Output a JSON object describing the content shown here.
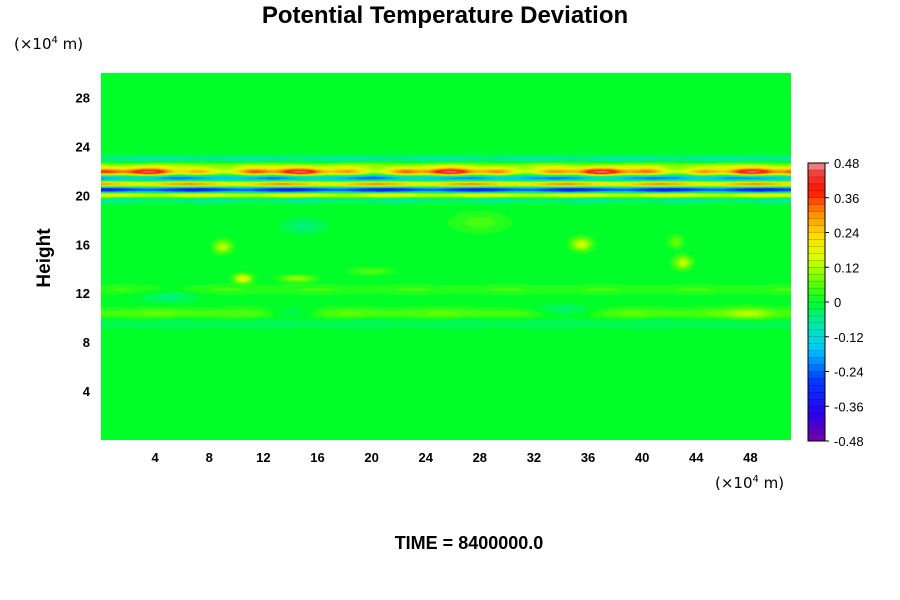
{
  "chart_data": {
    "type": "heatmap",
    "title": "Potential Temperature Deviation",
    "xlabel": "",
    "ylabel": "Height",
    "x_unit": "(×10",
    "x_unit_exp": "4",
    "x_unit_suffix": " m)",
    "y_unit": "(×10",
    "y_unit_exp": "4",
    "y_unit_suffix": " m)",
    "xlim": [
      0,
      51
    ],
    "ylim": [
      0,
      30
    ],
    "xticks": [
      4,
      8,
      12,
      16,
      20,
      24,
      28,
      32,
      36,
      40,
      44,
      48
    ],
    "yticks": [
      4,
      8,
      12,
      16,
      20,
      24,
      28
    ],
    "xtick_labels": [
      "4",
      "8",
      "12",
      "16",
      "20",
      "24",
      "28",
      "32",
      "36",
      "40",
      "44",
      "48"
    ],
    "ytick_labels": [
      "4",
      "8",
      "12",
      "16",
      "20",
      "24",
      "28"
    ],
    "colorbar": {
      "min": -0.48,
      "max": 0.48,
      "tick_values": [
        0.48,
        0.36,
        0.24,
        0.12,
        0,
        -0.12,
        -0.24,
        -0.36,
        -0.48
      ],
      "tick_labels": [
        "0.48",
        "0.36",
        "0.24",
        "0.12",
        "0",
        "-0.12",
        "-0.24",
        "-0.36",
        "-0.48"
      ]
    },
    "background_value": 0.0,
    "features": [
      {
        "kind": "band",
        "y": 22.9,
        "amp": -0.1,
        "thick": 0.35
      },
      {
        "kind": "band",
        "y": 22.5,
        "amp": 0.12,
        "thick": 0.3
      },
      {
        "kind": "band",
        "y": 21.9,
        "amp": 0.42,
        "thick": 0.35,
        "xmod": true
      },
      {
        "kind": "band",
        "y": 21.4,
        "amp": -0.3,
        "thick": 0.3
      },
      {
        "kind": "band",
        "y": 20.9,
        "amp": 0.38,
        "thick": 0.3
      },
      {
        "kind": "band",
        "y": 20.45,
        "amp": -0.46,
        "thick": 0.3
      },
      {
        "kind": "band",
        "y": 20.05,
        "amp": 0.3,
        "thick": 0.3
      },
      {
        "kind": "band",
        "y": 19.7,
        "amp": -0.12,
        "thick": 0.3
      },
      {
        "kind": "band",
        "y": 10.3,
        "amp": 0.07,
        "thick": 0.5
      },
      {
        "kind": "band",
        "y": 9.6,
        "amp": -0.04,
        "thick": 0.5
      },
      {
        "kind": "band",
        "y": 12.3,
        "amp": 0.04,
        "thick": 0.4
      },
      {
        "kind": "blob",
        "x": 10.5,
        "y": 13.2,
        "amp": 0.2,
        "rx": 0.6,
        "ry": 0.35
      },
      {
        "kind": "blob",
        "x": 14.5,
        "y": 13.2,
        "amp": 0.12,
        "rx": 1.2,
        "ry": 0.25
      },
      {
        "kind": "blob",
        "x": 9,
        "y": 15.8,
        "amp": 0.14,
        "rx": 0.6,
        "ry": 0.5
      },
      {
        "kind": "blob",
        "x": 20,
        "y": 13.8,
        "amp": 0.06,
        "rx": 1.5,
        "ry": 0.3
      },
      {
        "kind": "blob",
        "x": 35.5,
        "y": 16.0,
        "amp": 0.16,
        "rx": 0.7,
        "ry": 0.5
      },
      {
        "kind": "blob",
        "x": 43,
        "y": 14.5,
        "amp": 0.15,
        "rx": 0.6,
        "ry": 0.5
      },
      {
        "kind": "blob",
        "x": 42.5,
        "y": 16.2,
        "amp": 0.08,
        "rx": 0.5,
        "ry": 0.5
      },
      {
        "kind": "blob",
        "x": 5,
        "y": 11.8,
        "amp": -0.05,
        "rx": 2.0,
        "ry": 0.6
      },
      {
        "kind": "blob",
        "x": 34,
        "y": 10.5,
        "amp": -0.08,
        "rx": 2.5,
        "ry": 0.5
      },
      {
        "kind": "blob",
        "x": 14,
        "y": 10.4,
        "amp": -0.07,
        "rx": 2.0,
        "ry": 0.4
      },
      {
        "kind": "blob",
        "x": 48,
        "y": 10.3,
        "amp": 0.08,
        "rx": 1.5,
        "ry": 0.5
      },
      {
        "kind": "blob",
        "x": 15,
        "y": 17.5,
        "amp": -0.05,
        "rx": 1.5,
        "ry": 0.6
      },
      {
        "kind": "blob",
        "x": 28,
        "y": 17.8,
        "amp": 0.05,
        "rx": 2.0,
        "ry": 0.8
      }
    ]
  },
  "footer": {
    "time_label": "TIME = 8400000.0"
  }
}
